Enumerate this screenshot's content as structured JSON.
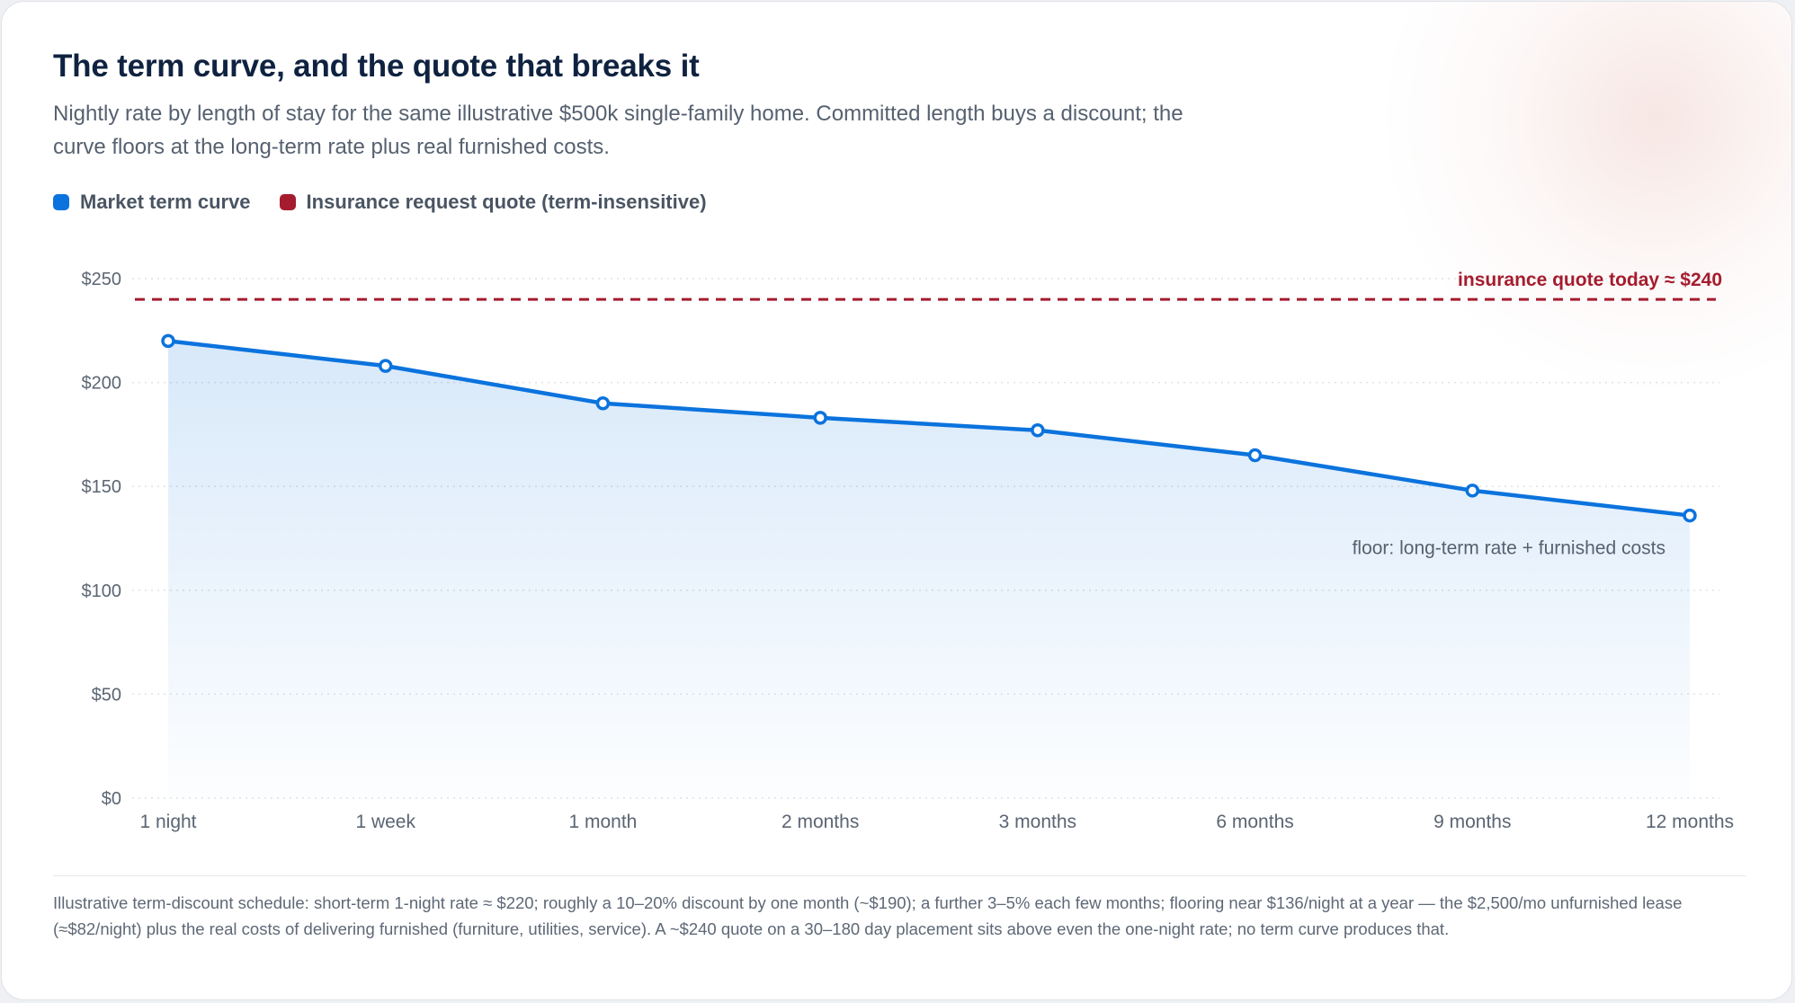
{
  "title": "The term curve, and the quote that breaks it",
  "subtitle": "Nightly rate by length of stay for the same illustrative $500k single-family home. Committed length buys a discount; the curve floors at the long-term rate plus real furnished costs.",
  "legend": [
    {
      "label": "Market term curve",
      "color": "#0b73dd"
    },
    {
      "label": "Insurance request quote (term-insensitive)",
      "color": "#a51c2e"
    }
  ],
  "chart_data": {
    "type": "line",
    "categories": [
      "1 night",
      "1 week",
      "1 month",
      "2 months",
      "3 months",
      "6 months",
      "9 months",
      "12 months"
    ],
    "series": [
      {
        "name": "Market term curve",
        "values": [
          220,
          208,
          190,
          183,
          177,
          165,
          148,
          136
        ],
        "color": "#0b73dd"
      }
    ],
    "reference_line": {
      "name": "Insurance request quote (term-insensitive)",
      "value": 240,
      "label": "insurance quote today ≈ $240",
      "color": "#a51c2e",
      "style": "dashed"
    },
    "annotation": {
      "text": "floor: long-term rate + furnished costs",
      "anchor_category": "12 months"
    },
    "y_ticks": [
      "$0",
      "$50",
      "$100",
      "$150",
      "$200",
      "$250"
    ],
    "y_tick_values": [
      0,
      50,
      100,
      150,
      200,
      250
    ],
    "ylim": [
      0,
      250
    ],
    "grid": "horizontal dotted",
    "area_fill": true
  },
  "footnote": "Illustrative term-discount schedule: short-term 1-night rate ≈ $220; roughly a 10–20% discount by one month (~$190); a further 3–5% each few months; flooring near $136/night at a year — the $2,500/mo unfurnished lease (≈$82/night) plus the real costs of delivering furnished (furniture, utilities, service). A ~$240 quote on a 30–180 day placement sits above even the one-night rate; no term curve produces that."
}
